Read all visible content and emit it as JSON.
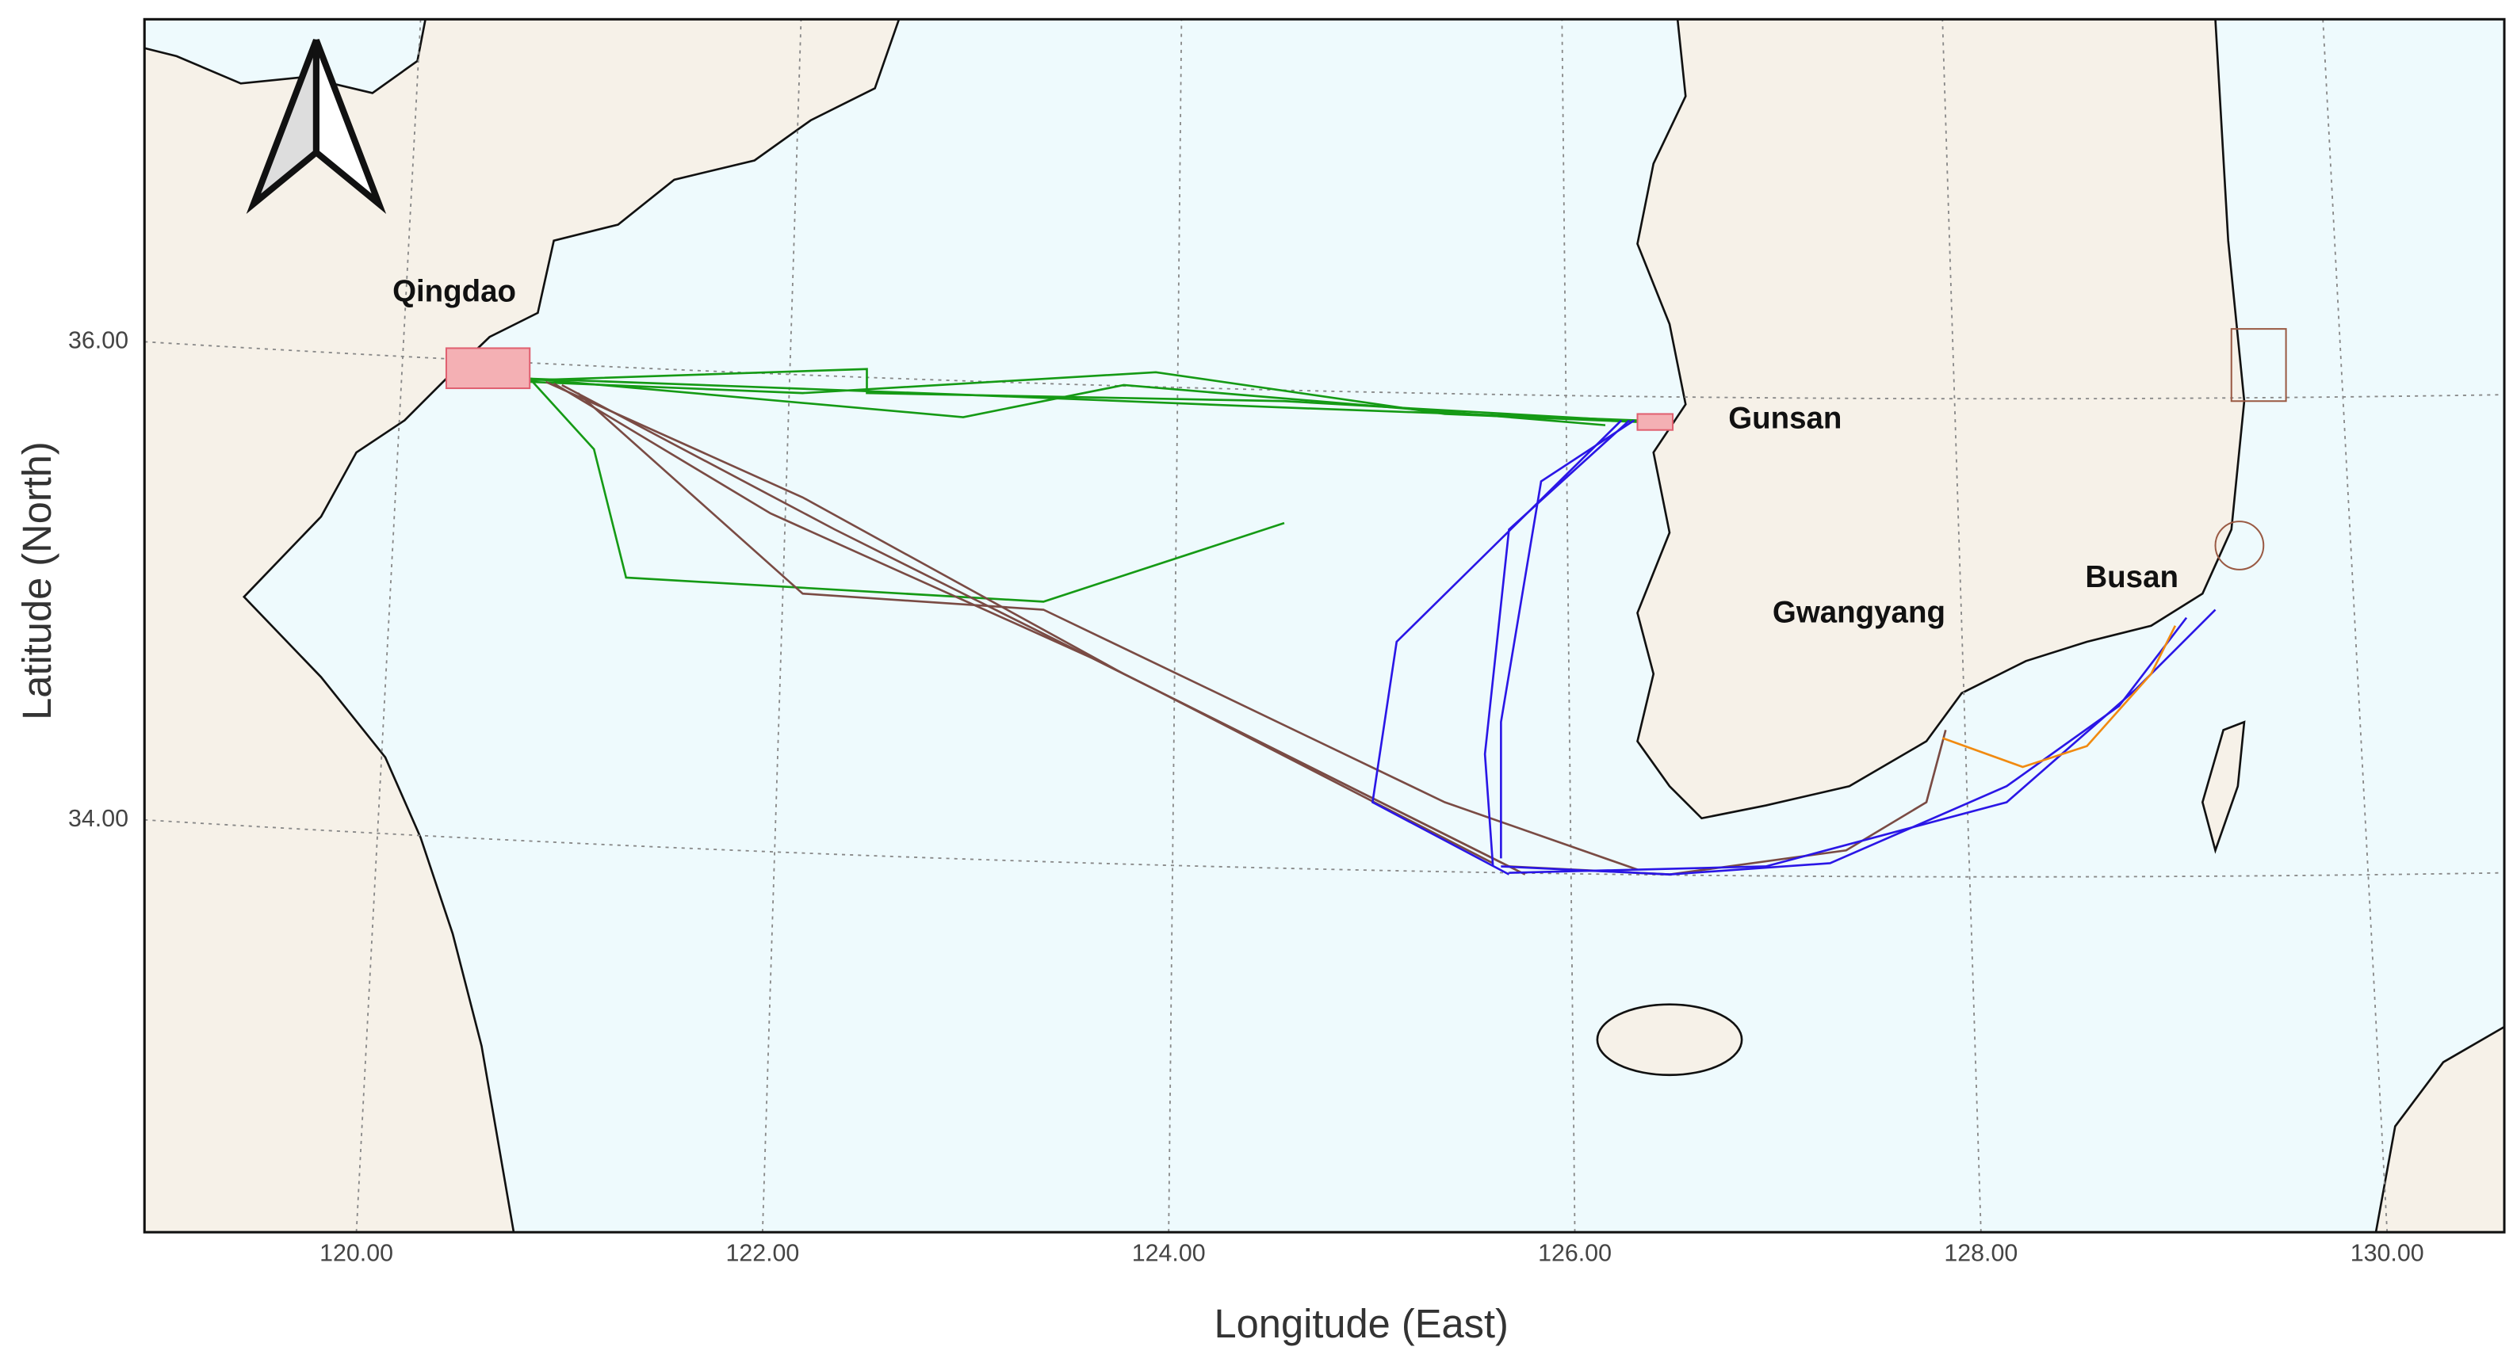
{
  "map": {
    "x_label": "Longitude (East)",
    "y_label": "Latitude (North)",
    "xticks": [
      {
        "value": 120,
        "label": "120.00"
      },
      {
        "value": 122,
        "label": "122.00"
      },
      {
        "value": 124,
        "label": "124.00"
      },
      {
        "value": 126,
        "label": "126.00"
      },
      {
        "value": 128,
        "label": "128.00"
      },
      {
        "value": 130,
        "label": "130.00"
      }
    ],
    "yticks": [
      {
        "value": 34,
        "label": "34.00"
      },
      {
        "value": 36,
        "label": "36.00"
      }
    ],
    "places": [
      {
        "name": "Qingdao"
      },
      {
        "name": "Gunsan"
      },
      {
        "name": "Gwangyang"
      },
      {
        "name": "Busan"
      }
    ]
  }
}
